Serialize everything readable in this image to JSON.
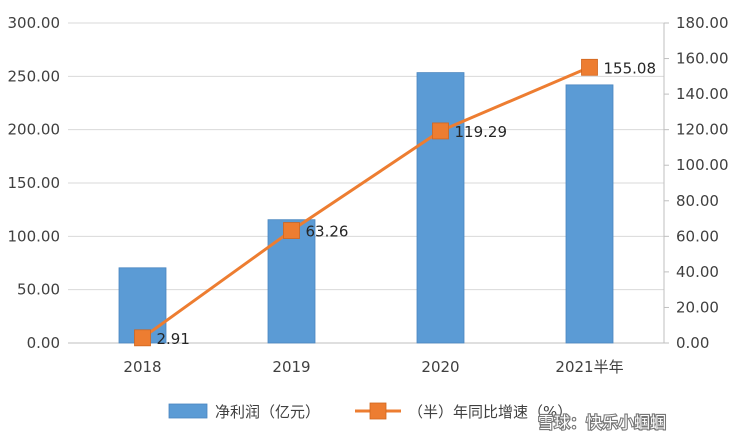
{
  "chart_data": {
    "type": "bar+line",
    "categories": [
      "2018",
      "2019",
      "2020",
      "2021半年"
    ],
    "series": [
      {
        "name": "净利润（亿元）",
        "type": "bar",
        "axis": "left",
        "color": "#5B9BD5",
        "values": [
          70.5,
          115.6,
          253.5,
          242.0
        ]
      },
      {
        "name": "（半）年同比增速（%）",
        "type": "line",
        "axis": "right",
        "color": "#ED7D31",
        "values": [
          2.91,
          63.26,
          119.29,
          155.08
        ],
        "data_labels": [
          "2.91",
          "63.26",
          "119.29",
          "155.08"
        ]
      }
    ],
    "left_axis": {
      "ylim": [
        0,
        300
      ],
      "ticks": [
        "0.00",
        "50.00",
        "100.00",
        "150.00",
        "200.00",
        "250.00",
        "300.00"
      ]
    },
    "right_axis": {
      "ylim": [
        0,
        180
      ],
      "ticks": [
        "0.00",
        "20.00",
        "40.00",
        "60.00",
        "80.00",
        "100.00",
        "120.00",
        "140.00",
        "160.00",
        "180.00"
      ]
    },
    "grid": true,
    "legend": "bottom",
    "title": "",
    "xlabel": "",
    "ylabel": ""
  },
  "watermark": {
    "text": "雪球：快乐小蝈蝈"
  }
}
